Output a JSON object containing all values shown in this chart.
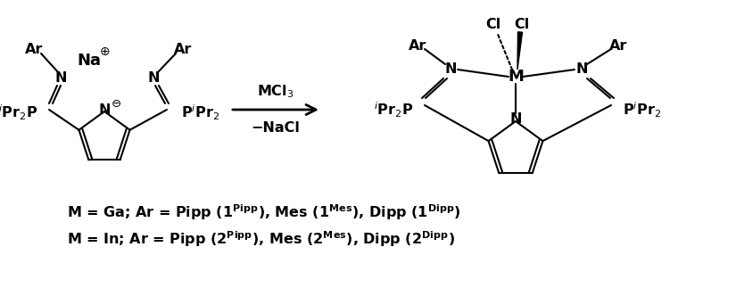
{
  "figsize": [
    8.25,
    3.23
  ],
  "dpi": 100,
  "background": "#ffffff",
  "text_line1_parts": [
    {
      "text": "M = Ga; Ar = Pipp (",
      "bold": true,
      "super": false,
      "num": ""
    },
    {
      "text": "1",
      "bold": true,
      "super": false,
      "num": "1"
    },
    {
      "text": "Pipp",
      "bold": true,
      "super": true,
      "num": ""
    },
    {
      "text": "), Mes (",
      "bold": true,
      "super": false,
      "num": ""
    },
    {
      "text": "1",
      "bold": true,
      "super": false,
      "num": "1"
    },
    {
      "text": "Mes",
      "bold": true,
      "super": true,
      "num": ""
    },
    {
      "text": "), Dipp (",
      "bold": true,
      "super": false,
      "num": ""
    },
    {
      "text": "1",
      "bold": true,
      "super": false,
      "num": "1"
    },
    {
      "text": "Dipp",
      "bold": true,
      "super": true,
      "num": ""
    },
    {
      "text": ")",
      "bold": true,
      "super": false,
      "num": ""
    }
  ],
  "arrow_label_above": "MCl3",
  "arrow_label_below": "−NaCl"
}
